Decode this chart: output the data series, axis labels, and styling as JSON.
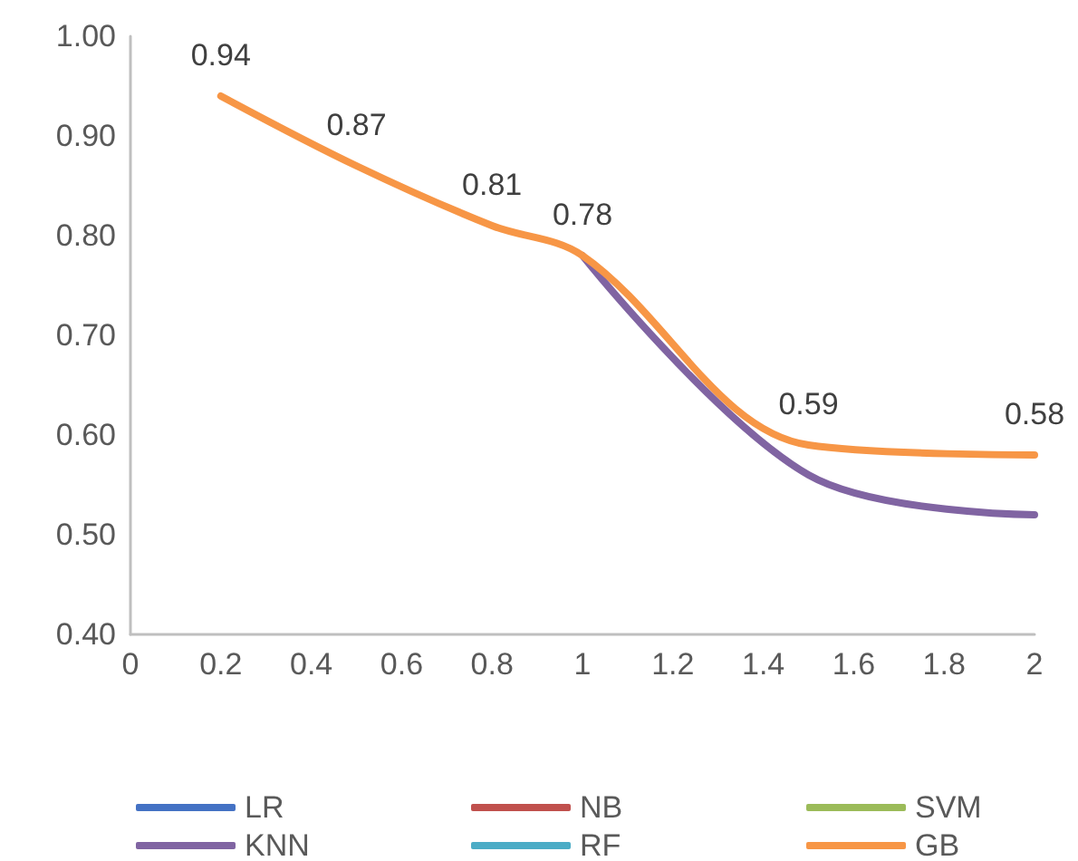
{
  "chart_data": {
    "type": "line",
    "x": [
      0.2,
      0.5,
      0.8,
      1,
      1.5,
      2
    ],
    "series": [
      {
        "name": "LR",
        "color": "#4472c4",
        "values": [
          null,
          null,
          null,
          null,
          null,
          null
        ]
      },
      {
        "name": "NB",
        "color": "#c0504d",
        "values": [
          null,
          null,
          null,
          null,
          null,
          null
        ]
      },
      {
        "name": "SVM",
        "color": "#9bbb59",
        "values": [
          null,
          null,
          null,
          null,
          null,
          null
        ]
      },
      {
        "name": "KNN",
        "color": "#8064a2",
        "values": [
          null,
          null,
          null,
          0.78,
          0.56,
          0.52
        ]
      },
      {
        "name": "RF",
        "color": "#4bacc6",
        "values": [
          null,
          null,
          null,
          null,
          null,
          null
        ]
      },
      {
        "name": "GB",
        "color": "#f79646",
        "values": [
          0.94,
          0.87,
          0.81,
          0.78,
          0.59,
          0.58
        ],
        "value_labels": [
          "0.94",
          "0.87",
          "0.81",
          "0.78",
          "0.59",
          "0.58"
        ]
      }
    ],
    "xlim": [
      0,
      2
    ],
    "xticks": [
      0,
      0.2,
      0.4,
      0.6,
      0.8,
      1,
      1.2,
      1.4,
      1.6,
      1.8,
      2
    ],
    "ylim": [
      0.4,
      1.0
    ],
    "yticks": [
      {
        "value": 0.4,
        "label": "0.40"
      },
      {
        "value": 0.5,
        "label": "0.50"
      },
      {
        "value": 0.6,
        "label": "0.60"
      },
      {
        "value": 0.7,
        "label": "0.70"
      },
      {
        "value": 0.8,
        "label": "0.80"
      },
      {
        "value": 0.9,
        "label": "0.90"
      },
      {
        "value": 1.0,
        "label": "1.00"
      }
    ],
    "grid": false,
    "legend": "bottom",
    "marker": "none",
    "line_style": "solid"
  }
}
